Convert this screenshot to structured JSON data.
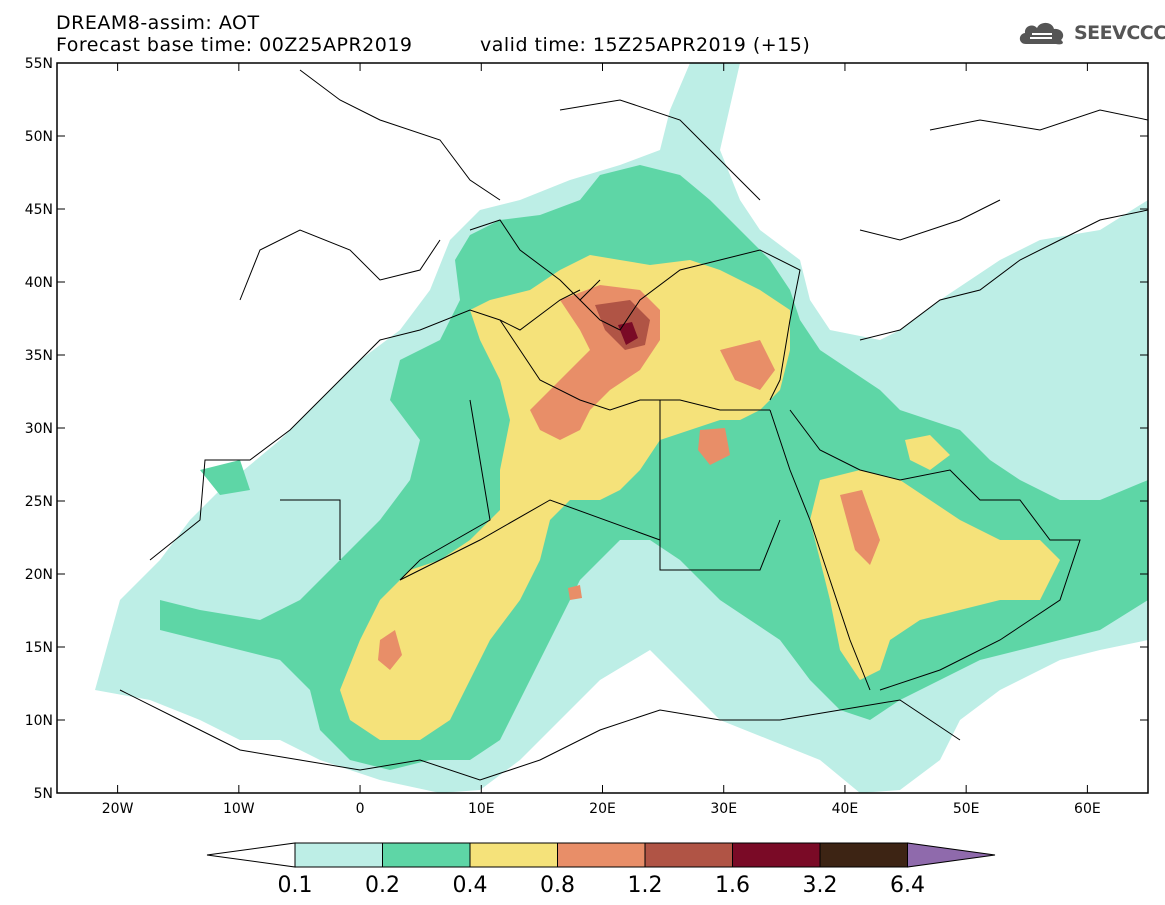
{
  "header": {
    "title": "DREAM8-assim: AOT",
    "base_time": "Forecast base time: 00Z25APR2019",
    "valid_time": "valid time: 15Z25APR2019 (+15)",
    "logo_text": "SEEVCCC"
  },
  "map": {
    "lat_labels": [
      "55N",
      "50N",
      "45N",
      "40N",
      "35N",
      "30N",
      "25N",
      "20N",
      "15N",
      "10N",
      "5N"
    ],
    "lon_labels": [
      "20W",
      "10W",
      "0",
      "10E",
      "20E",
      "30E",
      "40E",
      "50E",
      "60E"
    ],
    "lat_values": [
      55,
      50,
      45,
      40,
      35,
      30,
      25,
      20,
      15,
      10,
      5
    ],
    "lon_values": [
      -20,
      -10,
      0,
      10,
      20,
      30,
      40,
      50,
      60
    ],
    "lon_range": [
      -25,
      65
    ],
    "lat_range": [
      5,
      55
    ]
  },
  "colorbar": {
    "labels": [
      "0.1",
      "0.2",
      "0.4",
      "0.8",
      "1.2",
      "1.6",
      "3.2",
      "6.4"
    ],
    "colors": [
      "#bdeee6",
      "#5ed6a6",
      "#f5e27a",
      "#e88e68",
      "#b05445",
      "#7a0a26",
      "#3d2414",
      "#8f6aac"
    ],
    "under_color": "#ffffff"
  },
  "layers": {
    "ocean_bg": "#ffffff",
    "border_color": "#000000"
  }
}
